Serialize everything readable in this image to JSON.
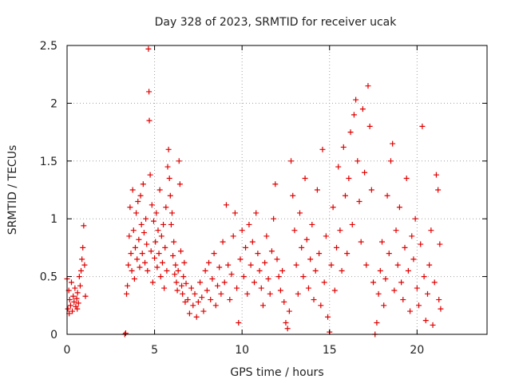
{
  "chart_data": {
    "type": "scatter",
    "title": "Day 328 of 2023, SRMTID for receiver ucak",
    "xlabel": "GPS time / hours",
    "ylabel": "SRMTID / TECUs",
    "xlim": [
      0,
      24
    ],
    "ylim": [
      0,
      2.5
    ],
    "xticks": [
      0,
      5,
      10,
      15,
      20
    ],
    "yticks": [
      0,
      0.5,
      1,
      1.5,
      2,
      2.5
    ],
    "xtick_labels": [
      "0",
      "5",
      "10",
      "15",
      "20"
    ],
    "ytick_labels": [
      "0",
      "0.5",
      "1",
      "1.5",
      "2",
      "2.5"
    ],
    "grid": true,
    "marker": "+",
    "color": "#e00000",
    "series": [
      {
        "name": "SRMTID",
        "points": [
          [
            0.0,
            0.48
          ],
          [
            0.05,
            0.22
          ],
          [
            0.1,
            0.38
          ],
          [
            0.15,
            0.3
          ],
          [
            0.2,
            0.25
          ],
          [
            0.25,
            0.45
          ],
          [
            0.3,
            0.2
          ],
          [
            0.35,
            0.33
          ],
          [
            0.4,
            0.28
          ],
          [
            0.45,
            0.4
          ],
          [
            0.5,
            0.24
          ],
          [
            0.55,
            0.31
          ],
          [
            0.6,
            0.36
          ],
          [
            0.65,
            0.27
          ],
          [
            0.7,
            0.5
          ],
          [
            0.75,
            0.42
          ],
          [
            0.8,
            0.55
          ],
          [
            0.85,
            0.65
          ],
          [
            0.9,
            0.75
          ],
          [
            0.95,
            0.94
          ],
          [
            1.0,
            0.6
          ],
          [
            1.05,
            0.33
          ],
          [
            0.12,
            0.18
          ],
          [
            0.58,
            0.22
          ],
          [
            3.3,
            0.0
          ],
          [
            3.35,
            0.01
          ],
          [
            3.4,
            0.35
          ],
          [
            3.45,
            0.42
          ],
          [
            3.5,
            0.6
          ],
          [
            3.55,
            0.85
          ],
          [
            3.6,
            1.1
          ],
          [
            3.65,
            0.7
          ],
          [
            3.7,
            0.55
          ],
          [
            3.75,
            1.25
          ],
          [
            3.8,
            0.9
          ],
          [
            3.85,
            0.48
          ],
          [
            3.9,
            0.75
          ],
          [
            3.95,
            1.05
          ],
          [
            4.0,
            0.65
          ],
          [
            4.05,
            1.15
          ],
          [
            4.1,
            0.82
          ],
          [
            4.15,
            0.58
          ],
          [
            4.2,
            1.2
          ],
          [
            4.25,
            0.95
          ],
          [
            4.3,
            0.7
          ],
          [
            4.35,
            1.3
          ],
          [
            4.4,
            0.88
          ],
          [
            4.45,
            0.62
          ],
          [
            4.5,
            1.0
          ],
          [
            4.55,
            0.78
          ],
          [
            4.6,
            0.55
          ],
          [
            4.65,
            2.47
          ],
          [
            4.68,
            2.1
          ],
          [
            4.7,
            1.85
          ],
          [
            4.75,
            1.38
          ],
          [
            4.8,
            0.72
          ],
          [
            4.85,
            1.12
          ],
          [
            4.9,
            0.45
          ],
          [
            4.95,
            0.98
          ],
          [
            5.0,
            0.66
          ],
          [
            5.05,
            0.8
          ],
          [
            5.1,
            1.05
          ],
          [
            5.15,
            0.58
          ],
          [
            5.2,
            0.9
          ],
          [
            5.25,
            0.7
          ],
          [
            5.3,
            1.25
          ],
          [
            5.35,
            0.5
          ],
          [
            5.4,
            0.85
          ],
          [
            5.45,
            0.62
          ],
          [
            5.5,
            0.95
          ],
          [
            5.55,
            0.4
          ],
          [
            5.6,
            0.75
          ],
          [
            5.65,
            1.1
          ],
          [
            5.7,
            0.55
          ],
          [
            5.75,
            1.45
          ],
          [
            5.8,
            1.6
          ],
          [
            5.85,
            1.35
          ],
          [
            5.9,
            1.2
          ],
          [
            5.95,
            0.95
          ],
          [
            6.0,
            1.05
          ],
          [
            6.05,
            0.68
          ],
          [
            6.1,
            0.8
          ],
          [
            6.15,
            0.52
          ],
          [
            6.2,
            0.6
          ],
          [
            6.25,
            0.45
          ],
          [
            6.3,
            0.38
          ],
          [
            6.35,
            0.55
          ],
          [
            6.4,
            1.5
          ],
          [
            6.45,
            1.3
          ],
          [
            6.5,
            0.72
          ],
          [
            6.55,
            0.42
          ],
          [
            6.6,
            0.35
          ],
          [
            6.65,
            0.5
          ],
          [
            6.7,
            0.62
          ],
          [
            6.75,
            0.28
          ],
          [
            6.8,
            0.44
          ],
          [
            6.9,
            0.3
          ],
          [
            7.0,
            0.18
          ],
          [
            7.1,
            0.4
          ],
          [
            7.2,
            0.25
          ],
          [
            7.3,
            0.35
          ],
          [
            7.4,
            0.15
          ],
          [
            7.5,
            0.28
          ],
          [
            7.6,
            0.45
          ],
          [
            7.7,
            0.32
          ],
          [
            7.8,
            0.2
          ],
          [
            7.9,
            0.55
          ],
          [
            8.0,
            0.38
          ],
          [
            8.1,
            0.62
          ],
          [
            8.2,
            0.3
          ],
          [
            8.3,
            0.48
          ],
          [
            8.4,
            0.7
          ],
          [
            8.5,
            0.25
          ],
          [
            8.6,
            0.42
          ],
          [
            8.7,
            0.58
          ],
          [
            8.8,
            0.35
          ],
          [
            8.9,
            0.8
          ],
          [
            9.0,
            0.45
          ],
          [
            9.1,
            1.12
          ],
          [
            9.2,
            0.6
          ],
          [
            9.3,
            0.3
          ],
          [
            9.4,
            0.52
          ],
          [
            9.5,
            0.85
          ],
          [
            9.6,
            1.05
          ],
          [
            9.7,
            0.4
          ],
          [
            9.8,
            0.1
          ],
          [
            9.9,
            0.65
          ],
          [
            10.0,
            0.9
          ],
          [
            10.1,
            0.5
          ],
          [
            10.2,
            0.75
          ],
          [
            10.3,
            0.35
          ],
          [
            10.4,
            0.95
          ],
          [
            10.5,
            0.6
          ],
          [
            10.6,
            0.8
          ],
          [
            10.7,
            0.45
          ],
          [
            10.8,
            1.05
          ],
          [
            10.9,
            0.7
          ],
          [
            11.0,
            0.55
          ],
          [
            11.1,
            0.4
          ],
          [
            11.2,
            0.25
          ],
          [
            11.3,
            0.62
          ],
          [
            11.4,
            0.85
          ],
          [
            11.5,
            0.48
          ],
          [
            11.6,
            0.35
          ],
          [
            11.7,
            0.72
          ],
          [
            11.8,
            1.0
          ],
          [
            11.9,
            1.3
          ],
          [
            12.0,
            0.65
          ],
          [
            12.1,
            0.5
          ],
          [
            12.2,
            0.38
          ],
          [
            12.3,
            0.55
          ],
          [
            12.4,
            0.28
          ],
          [
            12.5,
            0.1
          ],
          [
            12.6,
            0.05
          ],
          [
            12.7,
            0.2
          ],
          [
            12.8,
            1.5
          ],
          [
            12.9,
            1.2
          ],
          [
            13.0,
            0.9
          ],
          [
            13.1,
            0.6
          ],
          [
            13.2,
            0.35
          ],
          [
            13.3,
            1.05
          ],
          [
            13.4,
            0.75
          ],
          [
            13.5,
            0.5
          ],
          [
            13.6,
            1.35
          ],
          [
            13.7,
            0.82
          ],
          [
            13.8,
            0.4
          ],
          [
            13.9,
            0.65
          ],
          [
            14.0,
            0.95
          ],
          [
            14.1,
            0.3
          ],
          [
            14.2,
            0.55
          ],
          [
            14.3,
            1.25
          ],
          [
            14.4,
            0.7
          ],
          [
            14.5,
            0.25
          ],
          [
            14.6,
            1.6
          ],
          [
            14.7,
            0.45
          ],
          [
            14.8,
            0.85
          ],
          [
            14.9,
            0.15
          ],
          [
            15.0,
            0.02
          ],
          [
            15.1,
            0.6
          ],
          [
            15.2,
            1.1
          ],
          [
            15.3,
            0.38
          ],
          [
            15.4,
            0.75
          ],
          [
            15.5,
            1.45
          ],
          [
            15.6,
            0.9
          ],
          [
            15.7,
            0.55
          ],
          [
            15.8,
            1.62
          ],
          [
            15.9,
            1.2
          ],
          [
            16.0,
            0.7
          ],
          [
            16.1,
            1.35
          ],
          [
            16.2,
            1.75
          ],
          [
            16.3,
            0.95
          ],
          [
            16.4,
            1.9
          ],
          [
            16.5,
            2.03
          ],
          [
            16.6,
            1.5
          ],
          [
            16.7,
            1.15
          ],
          [
            16.8,
            0.8
          ],
          [
            16.9,
            1.95
          ],
          [
            17.0,
            1.4
          ],
          [
            17.1,
            0.6
          ],
          [
            17.2,
            2.15
          ],
          [
            17.3,
            1.8
          ],
          [
            17.4,
            1.25
          ],
          [
            17.5,
            0.45
          ],
          [
            17.6,
            0.0
          ],
          [
            17.7,
            0.1
          ],
          [
            17.8,
            0.35
          ],
          [
            17.9,
            0.55
          ],
          [
            18.0,
            0.8
          ],
          [
            18.1,
            0.25
          ],
          [
            18.2,
            0.48
          ],
          [
            18.3,
            1.2
          ],
          [
            18.4,
            0.7
          ],
          [
            18.5,
            1.5
          ],
          [
            18.6,
            1.65
          ],
          [
            18.7,
            0.38
          ],
          [
            18.8,
            0.9
          ],
          [
            18.9,
            0.6
          ],
          [
            19.0,
            1.1
          ],
          [
            19.1,
            0.45
          ],
          [
            19.2,
            0.3
          ],
          [
            19.3,
            0.75
          ],
          [
            19.4,
            1.35
          ],
          [
            19.5,
            0.55
          ],
          [
            19.6,
            0.2
          ],
          [
            19.7,
            0.85
          ],
          [
            19.8,
            0.65
          ],
          [
            19.9,
            1.0
          ],
          [
            20.0,
            0.4
          ],
          [
            20.1,
            0.25
          ],
          [
            20.2,
            0.78
          ],
          [
            20.3,
            1.8
          ],
          [
            20.4,
            0.5
          ],
          [
            20.5,
            0.12
          ],
          [
            20.6,
            0.35
          ],
          [
            20.7,
            0.6
          ],
          [
            20.8,
            0.9
          ],
          [
            20.9,
            0.08
          ],
          [
            21.0,
            0.45
          ],
          [
            21.1,
            1.38
          ],
          [
            21.2,
            1.25
          ],
          [
            21.25,
            0.3
          ],
          [
            21.3,
            0.78
          ],
          [
            21.35,
            0.22
          ]
        ]
      }
    ]
  }
}
